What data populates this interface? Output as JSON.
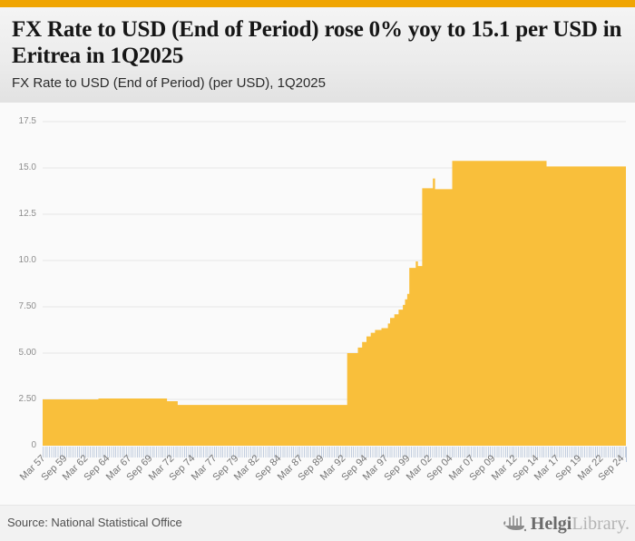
{
  "header": {
    "title": "FX Rate to USD (End of Period) rose 0% yoy to 15.1 per USD in Eritrea in 1Q2025",
    "subtitle": "FX Rate to USD (End of Period) (per USD), 1Q2025"
  },
  "footer": {
    "source": "Source: National Statistical Office",
    "brand": {
      "bold": "Helgi",
      "light": "Library."
    }
  },
  "chart_data": {
    "type": "area",
    "title": "FX Rate to USD (End of Period) (per USD), 1Q2025",
    "xlabel": "",
    "ylabel": "",
    "x_start": 1957.25,
    "x_end": 2025.25,
    "ylim": [
      0,
      17.94
    ],
    "grid": true,
    "legend": "none",
    "y_ticks": [
      "17.5",
      "15.0",
      "12.5",
      "10.0",
      "7.50",
      "5.00",
      "2.50",
      "0"
    ],
    "y_tick_values": [
      17.5,
      15.0,
      12.5,
      10.0,
      7.5,
      5.0,
      2.5,
      0
    ],
    "x_tick_labels": [
      "Mar 57",
      "Sep 59",
      "Mar 62",
      "Sep 64",
      "Mar 67",
      "Sep 69",
      "Mar 72",
      "Sep 74",
      "Mar 77",
      "Sep 79",
      "Mar 82",
      "Sep 84",
      "Mar 87",
      "Sep 89",
      "Mar 92",
      "Sep 94",
      "Mar 97",
      "Sep 99",
      "Mar 02",
      "Sep 04",
      "Mar 07",
      "Sep 09",
      "Mar 12",
      "Sep 14",
      "Mar 17",
      "Sep 19",
      "Mar 22",
      "Sep 24"
    ],
    "x_tick_interval_years": 2.5,
    "series": [
      {
        "name": "FX Rate to USD (End of Period) (per USD)",
        "interpolation": "step-after",
        "step_points": [
          [
            1957.25,
            2.5
          ],
          [
            1963.75,
            2.55
          ],
          [
            1971.75,
            2.4
          ],
          [
            1973.0,
            2.2
          ],
          [
            1992.75,
            5.0
          ],
          [
            1994.0,
            5.3
          ],
          [
            1994.5,
            5.6
          ],
          [
            1995.0,
            5.9
          ],
          [
            1995.5,
            6.1
          ],
          [
            1996.0,
            6.25
          ],
          [
            1996.75,
            6.35
          ],
          [
            1997.5,
            6.6
          ],
          [
            1997.75,
            6.9
          ],
          [
            1998.25,
            7.1
          ],
          [
            1998.75,
            7.35
          ],
          [
            1999.25,
            7.6
          ],
          [
            1999.5,
            7.9
          ],
          [
            1999.75,
            8.2
          ],
          [
            2000.0,
            9.6
          ],
          [
            2000.75,
            9.95
          ],
          [
            2001.0,
            9.7
          ],
          [
            2001.5,
            13.9
          ],
          [
            2002.75,
            14.43
          ],
          [
            2003.0,
            13.85
          ],
          [
            2005.0,
            15.375
          ],
          [
            2016.0,
            15.075
          ]
        ],
        "last_value": 15.075,
        "latest_period": "1Q2025",
        "latest_display": "15.1"
      }
    ],
    "colors": {
      "area": "#F9BF3B",
      "top_bar": "#F0A502",
      "grid": "#e7e7e7",
      "minor_ticks": "#c3cedf",
      "tick_text": "#757575"
    }
  }
}
